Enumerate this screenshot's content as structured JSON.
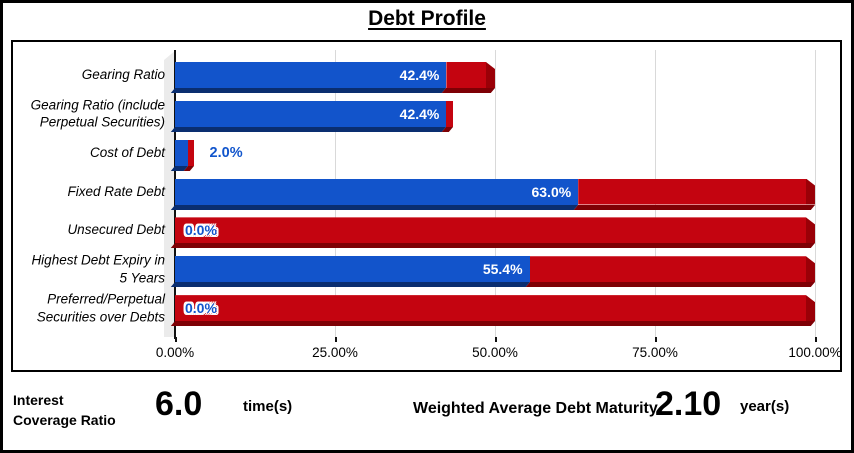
{
  "title": "Debt Profile",
  "chart_data": {
    "type": "bar",
    "orientation": "horizontal",
    "stacked": true,
    "title": "Debt Profile",
    "xlabel": "",
    "ylabel": "",
    "xlim": [
      0,
      100
    ],
    "grid": true,
    "x_tick_labels": [
      "0.00%",
      "25.00%",
      "50.00%",
      "75.00%",
      "100.00%"
    ],
    "x_tick_values": [
      0,
      25,
      50,
      75,
      100
    ],
    "series": [
      {
        "name": "value",
        "color": "#1254CB"
      },
      {
        "name": "remainder",
        "color": "#C40410"
      }
    ],
    "rows": [
      {
        "category": "Gearing Ratio",
        "value_pct": 42.4,
        "total_pct": 50.0,
        "value_label": "42.4%",
        "label_style": "inside"
      },
      {
        "category": "Gearing Ratio (include\nPerpetual Securities)",
        "value_pct": 42.4,
        "total_pct": 43.5,
        "value_label": "42.4%",
        "label_style": "inside"
      },
      {
        "category": "Cost of Debt",
        "value_pct": 2.0,
        "total_pct": 2.9,
        "value_label": "2.0%",
        "label_style": "outside"
      },
      {
        "category": "Fixed Rate Debt",
        "value_pct": 63.0,
        "total_pct": 100.0,
        "value_label": "63.0%",
        "label_style": "inside"
      },
      {
        "category": "Unsecured Debt",
        "value_pct": 0.0,
        "total_pct": 100.0,
        "value_label": "0.0%",
        "label_style": "outline"
      },
      {
        "category": "Highest Debt Expiry in\n5 Years",
        "value_pct": 55.4,
        "total_pct": 100.0,
        "value_label": "55.4%",
        "label_style": "inside"
      },
      {
        "category": "Preferred/Perpetual\nSecurities over Debts",
        "value_pct": 0.0,
        "total_pct": 100.0,
        "value_label": "0.0%",
        "label_style": "outline"
      }
    ]
  },
  "colors": {
    "bar_blue": "#1254CB",
    "bar_blue_dark": "#0A2E70",
    "bar_red": "#C40410",
    "bar_red_dark": "#7E0005",
    "bar_red_cap": "#9A0007",
    "gridline": "#D9D9D9",
    "wall": "#EBEBEB",
    "label_blue": "#1155CC"
  },
  "footer": {
    "metric1_label": "Interest\nCoverage Ratio",
    "metric1_value": "6.0",
    "metric1_unit": "time(s)",
    "metric2_label": "Weighted Average Debt Maturity",
    "metric2_value": "2.10",
    "metric2_unit": "year(s)"
  }
}
